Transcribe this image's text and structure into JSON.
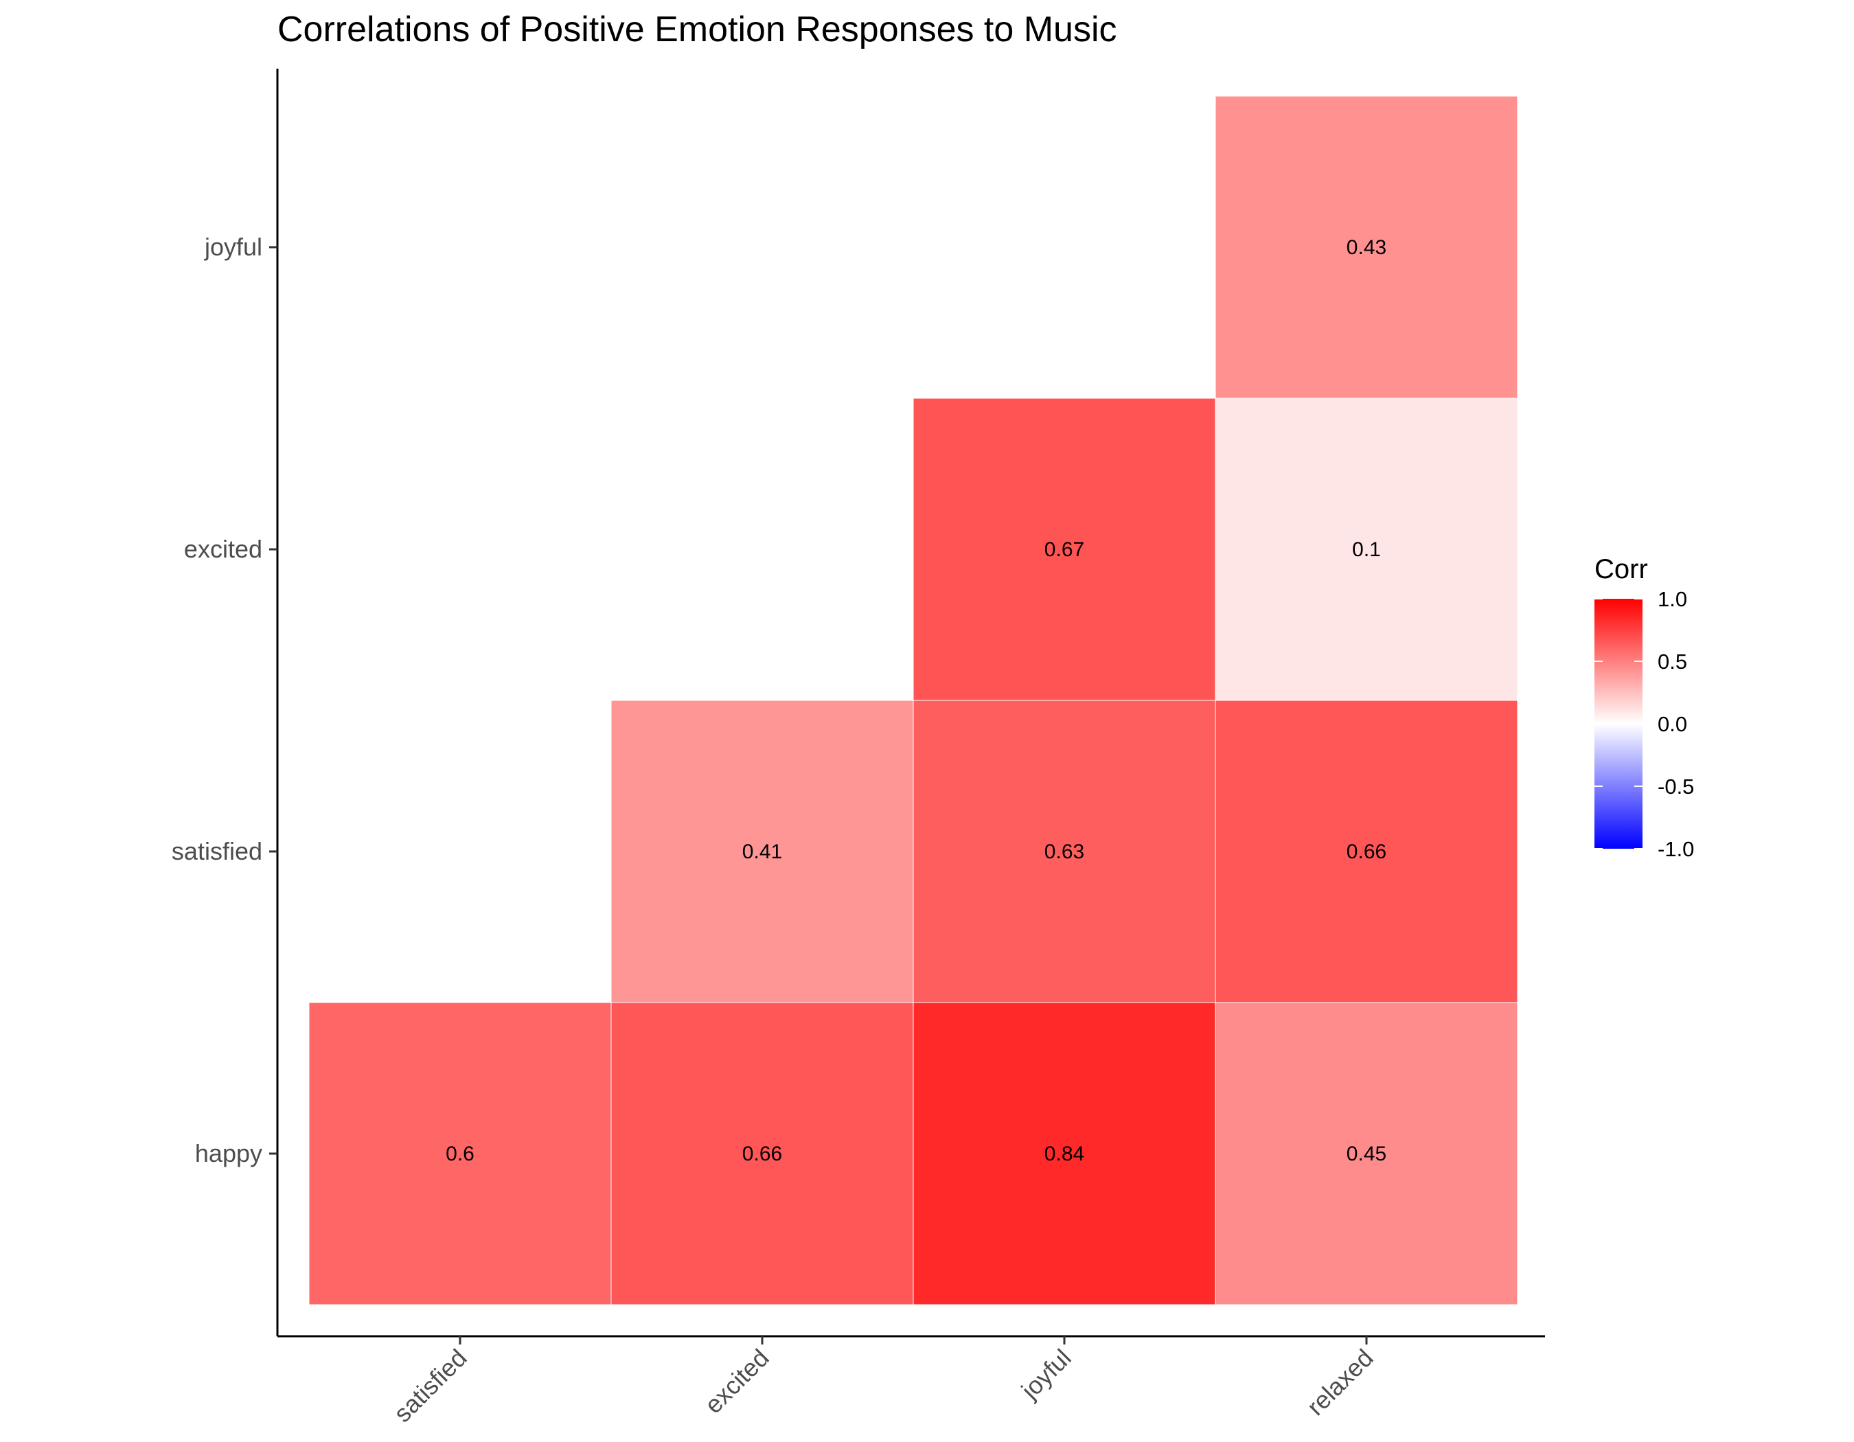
{
  "chart_data": {
    "type": "heatmap",
    "title": "Correlations of Positive Emotion Responses to Music",
    "xlabel": "",
    "ylabel": "",
    "x_categories": [
      "satisfied",
      "excited",
      "joyful",
      "relaxed"
    ],
    "y_categories": [
      "happy",
      "satisfied",
      "excited",
      "joyful"
    ],
    "cells": [
      {
        "x": "satisfied",
        "y": "happy",
        "value": 0.6,
        "label": "0.6"
      },
      {
        "x": "excited",
        "y": "happy",
        "value": 0.66,
        "label": "0.66"
      },
      {
        "x": "joyful",
        "y": "happy",
        "value": 0.84,
        "label": "0.84"
      },
      {
        "x": "relaxed",
        "y": "happy",
        "value": 0.45,
        "label": "0.45"
      },
      {
        "x": "excited",
        "y": "satisfied",
        "value": 0.41,
        "label": "0.41"
      },
      {
        "x": "joyful",
        "y": "satisfied",
        "value": 0.63,
        "label": "0.63"
      },
      {
        "x": "relaxed",
        "y": "satisfied",
        "value": 0.66,
        "label": "0.66"
      },
      {
        "x": "joyful",
        "y": "excited",
        "value": 0.67,
        "label": "0.67"
      },
      {
        "x": "relaxed",
        "y": "excited",
        "value": 0.1,
        "label": "0.1"
      },
      {
        "x": "relaxed",
        "y": "joyful",
        "value": 0.43,
        "label": "0.43"
      }
    ],
    "legend": {
      "title": "Corr",
      "placement": "right",
      "range": [
        -1,
        1
      ],
      "ticks": [
        {
          "value": 1.0,
          "label": "1.0"
        },
        {
          "value": 0.5,
          "label": "0.5"
        },
        {
          "value": 0.0,
          "label": "0.0"
        },
        {
          "value": -0.5,
          "label": "-0.5"
        },
        {
          "value": -1.0,
          "label": "-1.0"
        }
      ]
    },
    "colors": {
      "low": "#0000ff",
      "mid": "#ffffff",
      "high": "#ff0000"
    },
    "grid": false
  }
}
